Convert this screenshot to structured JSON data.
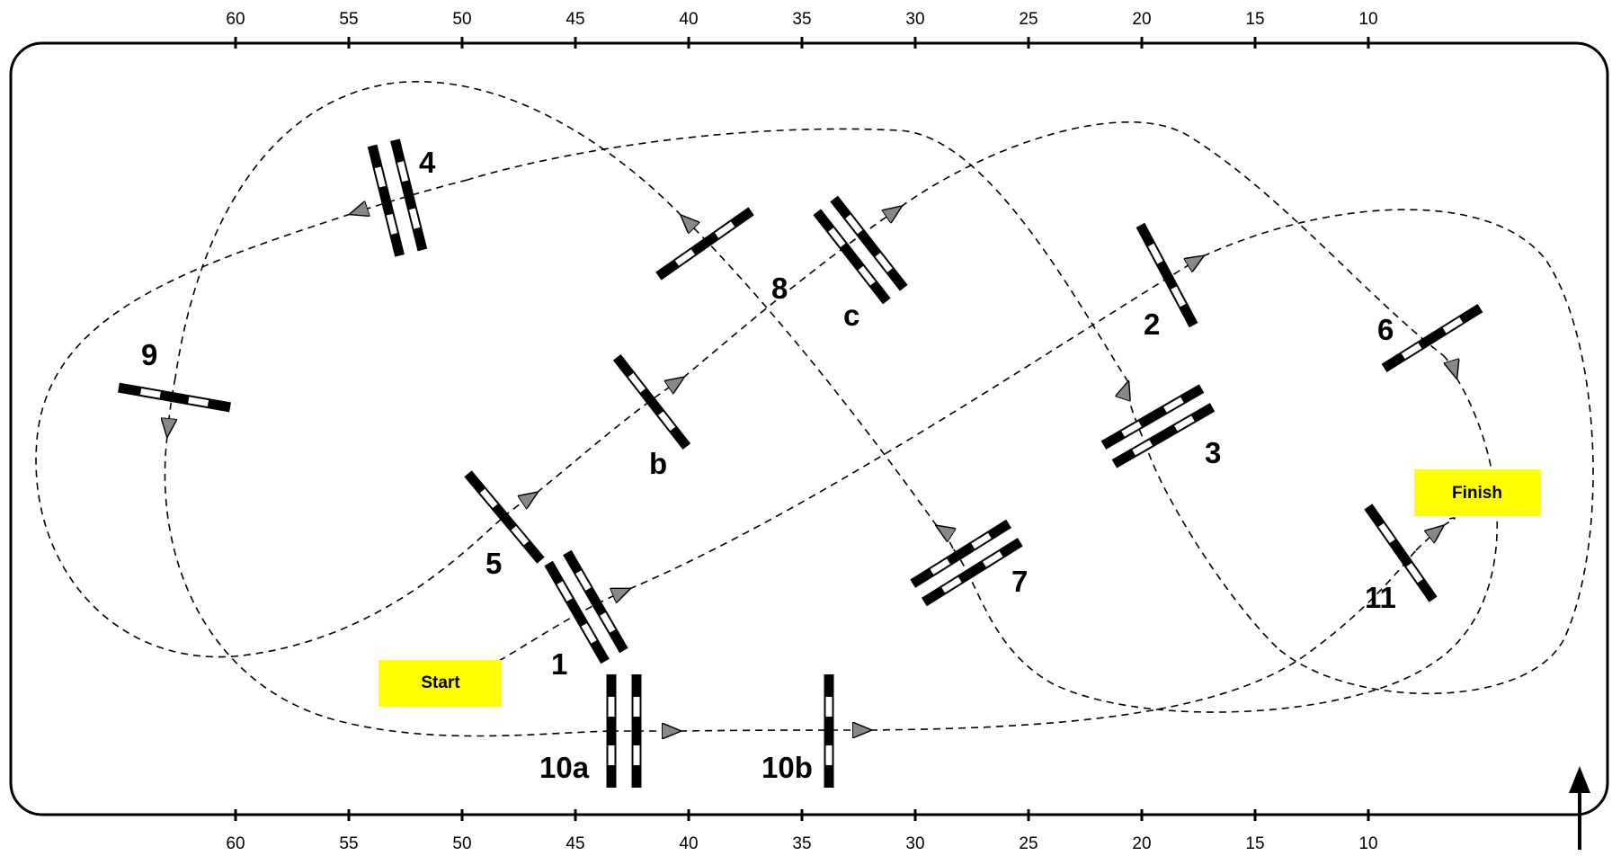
{
  "axis": {
    "top_ticks": [
      "60",
      "55",
      "50",
      "45",
      "40",
      "35",
      "30",
      "25",
      "20",
      "15",
      "10"
    ],
    "bottom_ticks": [
      "60",
      "55",
      "50",
      "45",
      "40",
      "35",
      "30",
      "25",
      "20",
      "15",
      "10"
    ]
  },
  "markers": {
    "start": "Start",
    "finish": "Finish"
  },
  "obstacles": [
    {
      "id": "1",
      "label": "1"
    },
    {
      "id": "2",
      "label": "2"
    },
    {
      "id": "3",
      "label": "3"
    },
    {
      "id": "4",
      "label": "4"
    },
    {
      "id": "5",
      "label": "5"
    },
    {
      "id": "6",
      "label": "6"
    },
    {
      "id": "7",
      "label": "7"
    },
    {
      "id": "8",
      "label": "8"
    },
    {
      "id": "9",
      "label": "9"
    },
    {
      "id": "10a",
      "label": "10a"
    },
    {
      "id": "10b",
      "label": "10b"
    },
    {
      "id": "11",
      "label": "11"
    },
    {
      "id": "b",
      "label": "b"
    },
    {
      "id": "c",
      "label": "c"
    }
  ],
  "colors": {
    "marker_fill": "#ffff00",
    "line": "#000000",
    "arrow_fill": "#888888",
    "pole_light": "#ffffff"
  },
  "icons": {
    "north": "north-arrow-icon"
  }
}
